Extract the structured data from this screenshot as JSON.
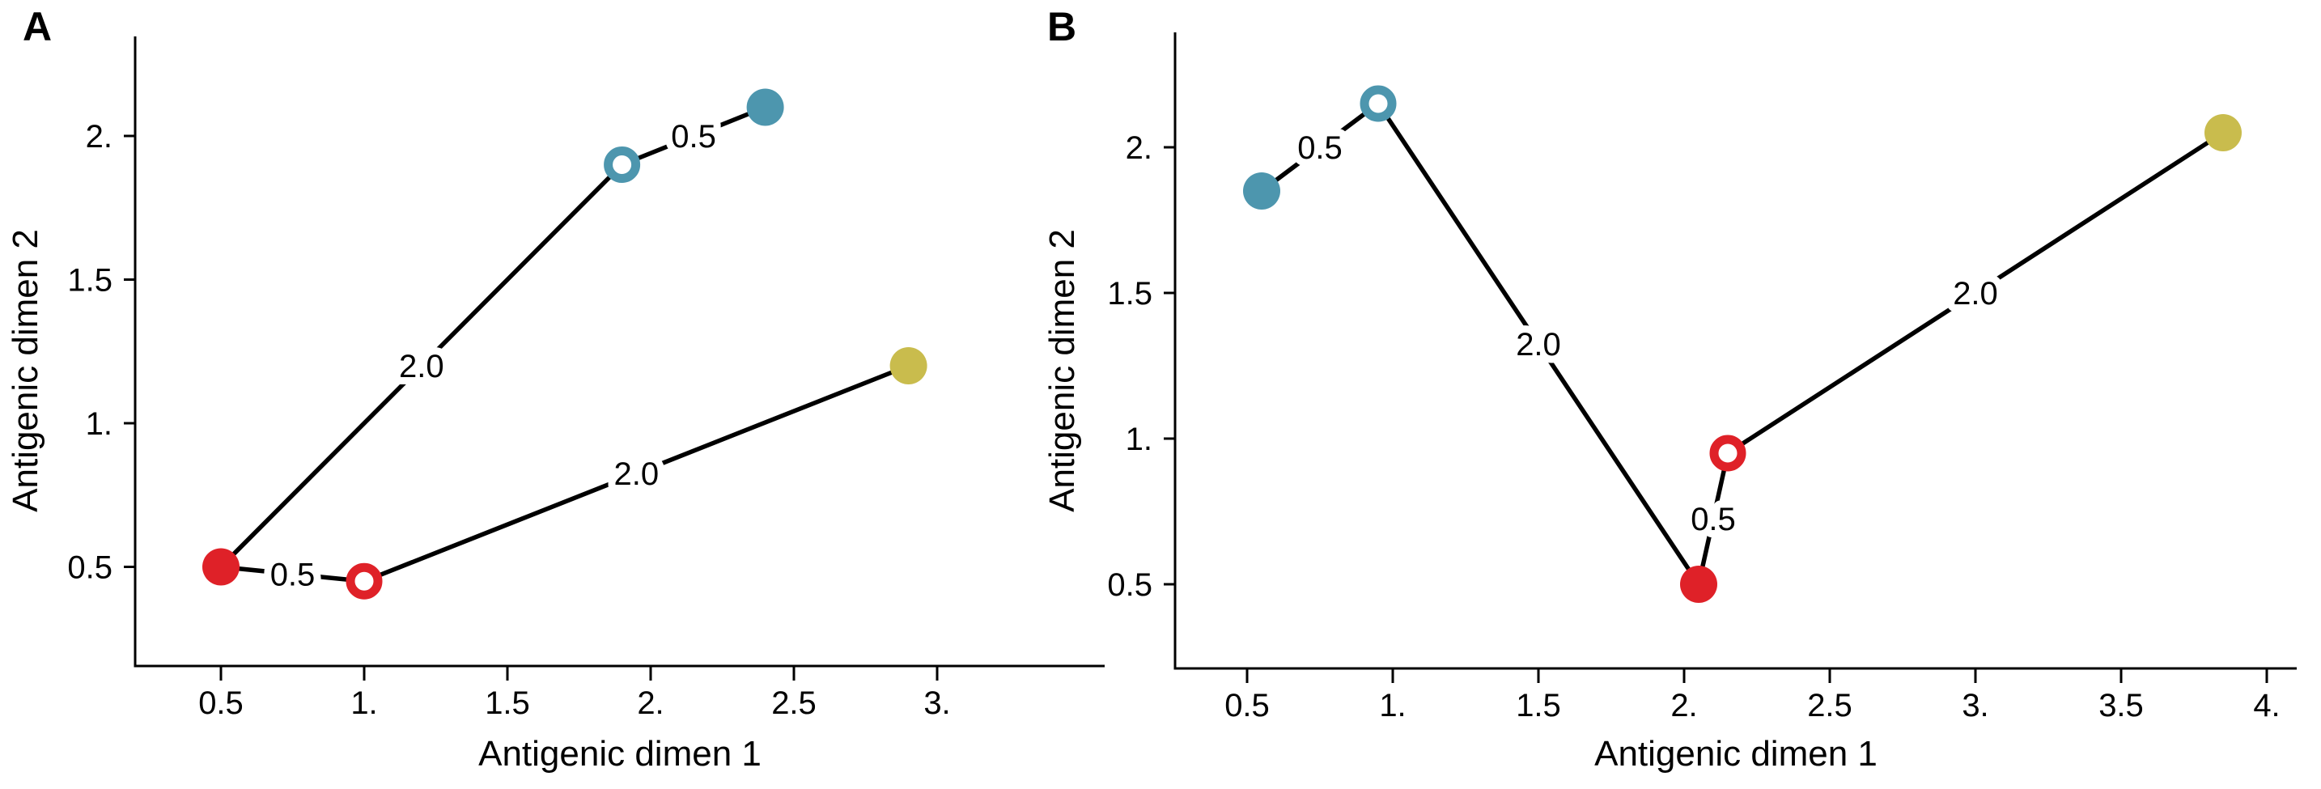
{
  "figure": {
    "background": "#ffffff",
    "description": "Two antigenic map panels showing strains (filled circles) and antisera (open circles) connected by edges labeled with antigenic distances"
  },
  "colors": {
    "blue": "#4D96AE",
    "red": "#DF2128",
    "yellow": "#C9BC4D",
    "line": "#000000",
    "axis": "#000000",
    "open_marker_fill": "#ffffff"
  },
  "chart_data": [
    {
      "type": "scatter",
      "panel_label": "A",
      "xlabel": "Antigenic dimen 1",
      "ylabel": "Antigenic dimen 2",
      "x_tick_labels": [
        "0.5",
        "1.",
        "1.5",
        "2.",
        "2.5",
        "3."
      ],
      "x_tick_values": [
        0.5,
        1.0,
        1.5,
        2.0,
        2.5,
        3.0
      ],
      "y_tick_labels": [
        "0.5",
        "1.",
        "1.5",
        "2."
      ],
      "y_tick_values": [
        0.5,
        1.0,
        1.5,
        2.0
      ],
      "xlim": [
        0.2,
        3.6
      ],
      "ylim": [
        0.15,
        2.35
      ],
      "grid": false,
      "points": [
        {
          "id": "red-filled",
          "x": 0.5,
          "y": 0.5,
          "color_key": "red",
          "style": "filled"
        },
        {
          "id": "red-open",
          "x": 1.0,
          "y": 0.45,
          "color_key": "red",
          "style": "open"
        },
        {
          "id": "blue-open",
          "x": 1.9,
          "y": 1.9,
          "color_key": "blue",
          "style": "open"
        },
        {
          "id": "blue-filled",
          "x": 2.4,
          "y": 2.1,
          "color_key": "blue",
          "style": "filled"
        },
        {
          "id": "yellow-filled",
          "x": 2.9,
          "y": 1.2,
          "color_key": "yellow",
          "style": "filled"
        }
      ],
      "edges": [
        {
          "from": "red-filled",
          "to": "red-open",
          "label": "0.5"
        },
        {
          "from": "red-filled",
          "to": "blue-open",
          "label": "2.0"
        },
        {
          "from": "blue-open",
          "to": "blue-filled",
          "label": "0.5"
        },
        {
          "from": "red-open",
          "to": "yellow-filled",
          "label": "2.0"
        }
      ]
    },
    {
      "type": "scatter",
      "panel_label": "B",
      "xlabel": "Antigenic dimen 1",
      "ylabel": "Antigenic dimen 2",
      "x_tick_labels": [
        "0.5",
        "1.",
        "1.5",
        "2.",
        "2.5",
        "3.",
        "3.5",
        "4."
      ],
      "x_tick_values": [
        0.5,
        1.0,
        1.5,
        2.0,
        2.5,
        3.0,
        3.5,
        4.0
      ],
      "y_tick_labels": [
        "0.5",
        "1.",
        "1.5",
        "2."
      ],
      "y_tick_values": [
        0.5,
        1.0,
        1.5,
        2.0
      ],
      "xlim": [
        0.25,
        4.1
      ],
      "ylim": [
        0.21,
        2.4
      ],
      "grid": false,
      "points": [
        {
          "id": "blue-filled",
          "x": 0.55,
          "y": 1.85,
          "color_key": "blue",
          "style": "filled"
        },
        {
          "id": "blue-open",
          "x": 0.95,
          "y": 2.15,
          "color_key": "blue",
          "style": "open"
        },
        {
          "id": "red-filled",
          "x": 2.05,
          "y": 0.5,
          "color_key": "red",
          "style": "filled"
        },
        {
          "id": "red-open",
          "x": 2.15,
          "y": 0.95,
          "color_key": "red",
          "style": "open"
        },
        {
          "id": "yellow-filled",
          "x": 3.85,
          "y": 2.05,
          "color_key": "yellow",
          "style": "filled"
        }
      ],
      "edges": [
        {
          "from": "blue-filled",
          "to": "blue-open",
          "label": "0.5"
        },
        {
          "from": "blue-open",
          "to": "red-filled",
          "label": "2.0"
        },
        {
          "from": "red-filled",
          "to": "red-open",
          "label": "0.5"
        },
        {
          "from": "red-open",
          "to": "yellow-filled",
          "label": "2.0"
        }
      ]
    }
  ]
}
